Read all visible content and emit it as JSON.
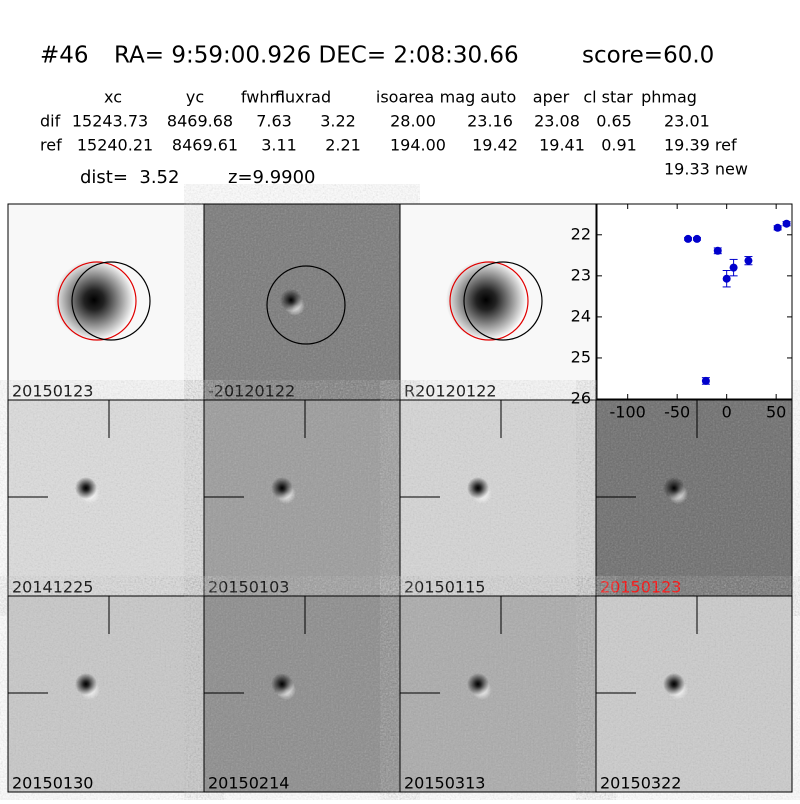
{
  "header": {
    "id": "#46",
    "coords": "RA= 9:59:00.926 DEC= 2:08:30.66",
    "score": "score=60.0"
  },
  "table": {
    "columns": [
      "xc",
      "yc",
      "fwhm",
      "fluxrad",
      "isoarea",
      "mag auto",
      "aper",
      "cl star",
      "phmag"
    ],
    "rows": [
      [
        "dif",
        "15243.73",
        "8469.68",
        "7.63",
        "3.22",
        "28.00",
        "23.16",
        "23.08",
        "0.65",
        "23.01"
      ],
      [
        "ref",
        "15240.21",
        "8469.61",
        "3.11",
        "2.21",
        "194.00",
        "19.42",
        "19.41",
        "0.91",
        "19.39 ref"
      ]
    ],
    "note": "19.33 new"
  },
  "dist": "dist=  3.52",
  "z": "z=9.9900",
  "panels": [
    {
      "label": "20150123"
    },
    {
      "label": "-20120122"
    },
    {
      "label": "R20120122"
    },
    {
      "label": "20141225"
    },
    {
      "label": "20150103"
    },
    {
      "label": "20150115"
    },
    {
      "label": "20150123",
      "color": "#ff0000"
    },
    {
      "label": "20150130"
    },
    {
      "label": "20150214"
    },
    {
      "label": "20150313"
    },
    {
      "label": "20150322"
    }
  ],
  "chart_data": {
    "type": "scatter",
    "color": "#0000cc",
    "x": [
      -39,
      -30,
      -9,
      -21,
      0,
      7,
      22,
      51.5,
      60.5
    ],
    "values": [
      22.1,
      22.1,
      22.39,
      25.56,
      23.07,
      22.8,
      22.63,
      21.83,
      21.73
    ],
    "errors": [
      0.03,
      0.03,
      0.07,
      0.08,
      0.2,
      0.2,
      0.1,
      0.05,
      0.05
    ],
    "xlim": [
      -131,
      66
    ],
    "ylim": [
      26,
      21.25
    ],
    "xticks": [
      -100,
      -50,
      0,
      50
    ],
    "yticks": [
      22,
      23,
      24,
      25,
      26
    ]
  }
}
